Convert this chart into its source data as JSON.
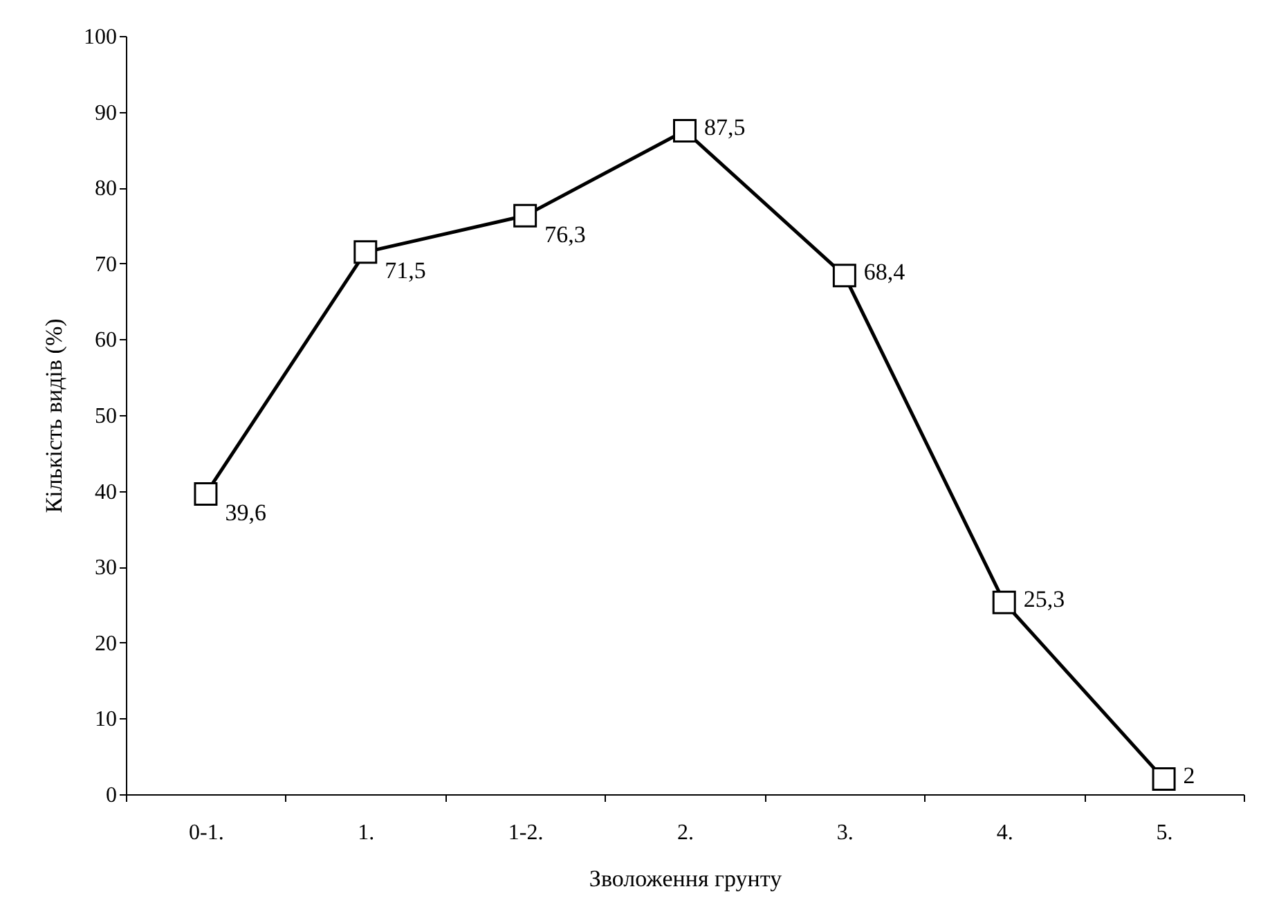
{
  "chart_data": {
    "type": "line",
    "xlabel": "Зволоження грунту",
    "ylabel": "Кількість видів (%)",
    "categories": [
      "0-1.",
      "1.",
      "1-2.",
      "2.",
      "3.",
      "4.",
      "5."
    ],
    "series": [
      {
        "color": "#000000",
        "values": [
          39.6,
          71.5,
          76.3,
          87.5,
          68.4,
          25.3,
          2
        ],
        "value_labels": [
          "39,6",
          "71,5",
          "76,3",
          "87,5",
          "68,4",
          "25,3",
          "2"
        ]
      }
    ],
    "ylim": [
      0,
      100
    ],
    "yticks": [
      0,
      10,
      20,
      30,
      40,
      50,
      60,
      70,
      80,
      90,
      100
    ],
    "grid": false,
    "marker": "square",
    "line_style": "solid"
  }
}
